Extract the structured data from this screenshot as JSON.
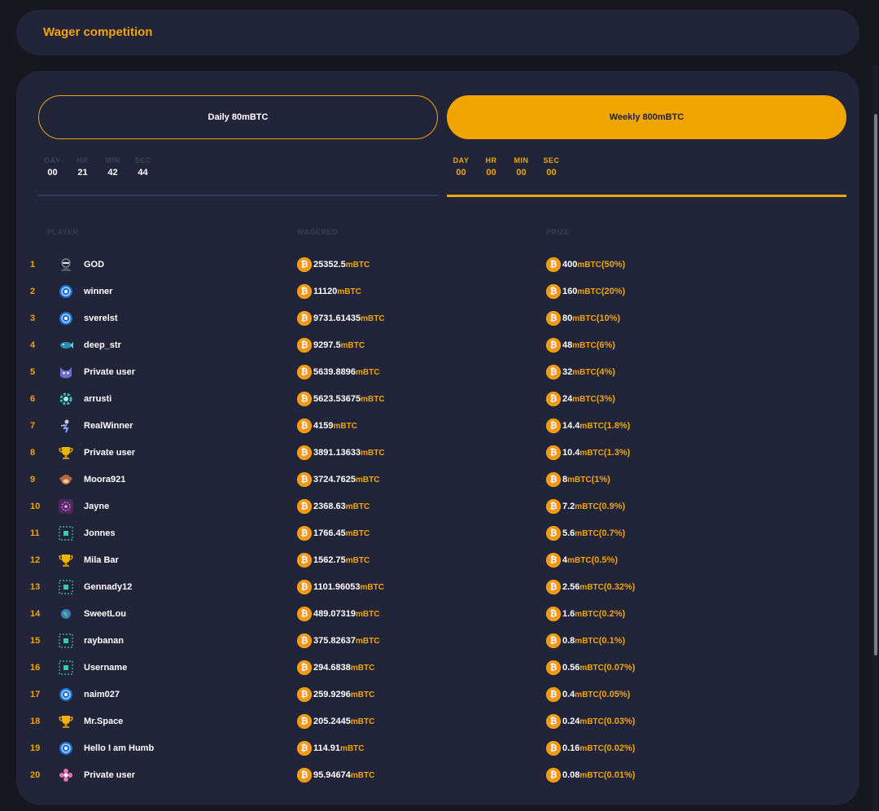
{
  "header": {
    "title": "Wager competition"
  },
  "tabs": {
    "daily": {
      "label": "Daily 80mBTC"
    },
    "weekly": {
      "label": "Weekly 800mBTC"
    }
  },
  "timers": {
    "labels": [
      "DAY",
      "HR",
      "MIN",
      "SEC"
    ],
    "daily": [
      "00",
      "21",
      "42",
      "44"
    ],
    "weekly": [
      "00",
      "00",
      "00",
      "00"
    ]
  },
  "columns": {
    "player": "PLAYER",
    "wagered": "WAGERED",
    "prize": "PRIZE"
  },
  "unit": "mBTC",
  "colors": {
    "accent": "#f0a500",
    "panel": "#22243a",
    "background": "#16171f",
    "coin": "#f7931a"
  },
  "rows": [
    {
      "rank": "1",
      "player": "GOD",
      "wagered": "25352.5",
      "prize": "400",
      "pct": "(50%)",
      "avatar": "ninja-avatar-icon"
    },
    {
      "rank": "2",
      "player": "winner",
      "wagered": "11120",
      "prize": "160",
      "pct": "(20%)",
      "avatar": "blue-orb-avatar-icon"
    },
    {
      "rank": "3",
      "player": "sverelst",
      "wagered": "9731.61435",
      "prize": "80",
      "pct": "(10%)",
      "avatar": "blue-orb-avatar-icon"
    },
    {
      "rank": "4",
      "player": "deep_str",
      "wagered": "9297.5",
      "prize": "48",
      "pct": "(6%)",
      "avatar": "fish-avatar-icon"
    },
    {
      "rank": "5",
      "player": "Private user",
      "wagered": "5639.8896",
      "prize": "32",
      "pct": "(4%)",
      "avatar": "cat-avatar-icon"
    },
    {
      "rank": "6",
      "player": "arrusti",
      "wagered": "5623.53675",
      "prize": "24",
      "pct": "(3%)",
      "avatar": "gear-avatar-icon"
    },
    {
      "rank": "7",
      "player": "RealWinner",
      "wagered": "4159",
      "prize": "14.4",
      "pct": "(1.8%)",
      "avatar": "skater-avatar-icon"
    },
    {
      "rank": "8",
      "player": "Private user",
      "wagered": "3891.13633",
      "prize": "10.4",
      "pct": "(1.3%)",
      "avatar": "trophy-avatar-icon"
    },
    {
      "rank": "9",
      "player": "Moora921",
      "wagered": "3724.7625",
      "prize": "8",
      "pct": "(1%)",
      "avatar": "monkey-avatar-icon"
    },
    {
      "rank": "10",
      "player": "Jayne",
      "wagered": "2368.63",
      "prize": "7.2",
      "pct": "(0.9%)",
      "avatar": "mandala-avatar-icon"
    },
    {
      "rank": "11",
      "player": "Jonnes",
      "wagered": "1766.45",
      "prize": "5.6",
      "pct": "(0.7%)",
      "avatar": "pixel-avatar-icon"
    },
    {
      "rank": "12",
      "player": "Mila Bar",
      "wagered": "1562.75",
      "prize": "4",
      "pct": "(0.5%)",
      "avatar": "trophy-avatar-icon"
    },
    {
      "rank": "13",
      "player": "Gennady12",
      "wagered": "1101.96053",
      "prize": "2.56",
      "pct": "(0.32%)",
      "avatar": "pixel-avatar-icon"
    },
    {
      "rank": "14",
      "player": "SweetLou",
      "wagered": "489.07319",
      "prize": "1.6",
      "pct": "(0.2%)",
      "avatar": "globe-avatar-icon"
    },
    {
      "rank": "15",
      "player": "raybanan",
      "wagered": "375.82637",
      "prize": "0.8",
      "pct": "(0.1%)",
      "avatar": "pixel-avatar-icon"
    },
    {
      "rank": "16",
      "player": "Username",
      "wagered": "294.6838",
      "prize": "0.56",
      "pct": "(0.07%)",
      "avatar": "pixel-avatar-icon"
    },
    {
      "rank": "17",
      "player": "naim027",
      "wagered": "259.9296",
      "prize": "0.4",
      "pct": "(0.05%)",
      "avatar": "blue-orb-avatar-icon"
    },
    {
      "rank": "18",
      "player": "Mr.Space",
      "wagered": "205.2445",
      "prize": "0.24",
      "pct": "(0.03%)",
      "avatar": "trophy-avatar-icon"
    },
    {
      "rank": "19",
      "player": "Hello I am Humb",
      "wagered": "114.91",
      "prize": "0.16",
      "pct": "(0.02%)",
      "avatar": "blue-orb-avatar-icon"
    },
    {
      "rank": "20",
      "player": "Private user",
      "wagered": "95.94674",
      "prize": "0.08",
      "pct": "(0.01%)",
      "avatar": "flower-avatar-icon"
    }
  ]
}
